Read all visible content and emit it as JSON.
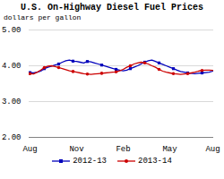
{
  "chart_data": {
    "type": "line",
    "title": "U.S. On-Highway Diesel Fuel Prices",
    "subtitle": "dollars per gallon",
    "categories": [
      "Aug",
      null,
      null,
      null,
      null,
      null,
      null,
      null,
      null,
      null,
      null,
      null,
      null,
      "Nov",
      null,
      null,
      null,
      null,
      null,
      null,
      null,
      null,
      null,
      null,
      null,
      null,
      "Feb",
      null,
      null,
      null,
      null,
      null,
      null,
      null,
      null,
      null,
      null,
      null,
      null,
      "May",
      null,
      null,
      null,
      null,
      null,
      null,
      null,
      null,
      null,
      null,
      null,
      "Aug"
    ],
    "series": [
      {
        "name": "2012-13",
        "color": "#0000bb",
        "marker": "square",
        "values": [
          3.81,
          3.8,
          3.82,
          3.85,
          3.92,
          3.96,
          3.99,
          4.02,
          4.05,
          4.1,
          4.14,
          4.16,
          4.13,
          4.12,
          4.1,
          4.08,
          4.12,
          4.11,
          4.08,
          4.05,
          4.02,
          3.99,
          3.96,
          3.93,
          3.9,
          3.88,
          3.86,
          3.88,
          3.92,
          3.96,
          4.0,
          4.05,
          4.1,
          4.14,
          4.16,
          4.12,
          4.08,
          4.04,
          4.0,
          3.96,
          3.92,
          3.88,
          3.84,
          3.82,
          3.8,
          3.79,
          3.78,
          3.79,
          3.8,
          3.81,
          3.82,
          3.85
        ]
      },
      {
        "name": "2013-14",
        "color": "#cc0000",
        "marker": "circle",
        "values": [
          3.78,
          3.77,
          3.82,
          3.88,
          3.95,
          3.99,
          4.0,
          3.98,
          3.95,
          3.92,
          3.89,
          3.86,
          3.84,
          3.82,
          3.8,
          3.78,
          3.77,
          3.76,
          3.77,
          3.78,
          3.79,
          3.8,
          3.81,
          3.82,
          3.83,
          3.86,
          3.9,
          3.96,
          4.0,
          4.05,
          4.08,
          4.1,
          4.08,
          4.05,
          4.0,
          3.96,
          3.9,
          3.85,
          3.82,
          3.8,
          3.78,
          3.77,
          3.76,
          3.77,
          3.78,
          3.8,
          3.82,
          3.85,
          3.87,
          3.88,
          3.88,
          3.87
        ]
      }
    ],
    "ylim": [
      2.0,
      5.0
    ],
    "yticks": [
      {
        "value": 2.0,
        "label": "2.00"
      },
      {
        "value": 3.0,
        "label": "3.00"
      },
      {
        "value": 4.0,
        "label": "4.00"
      },
      {
        "value": 5.0,
        "label": "5.00"
      }
    ],
    "grid": true,
    "legend": "bottom"
  }
}
